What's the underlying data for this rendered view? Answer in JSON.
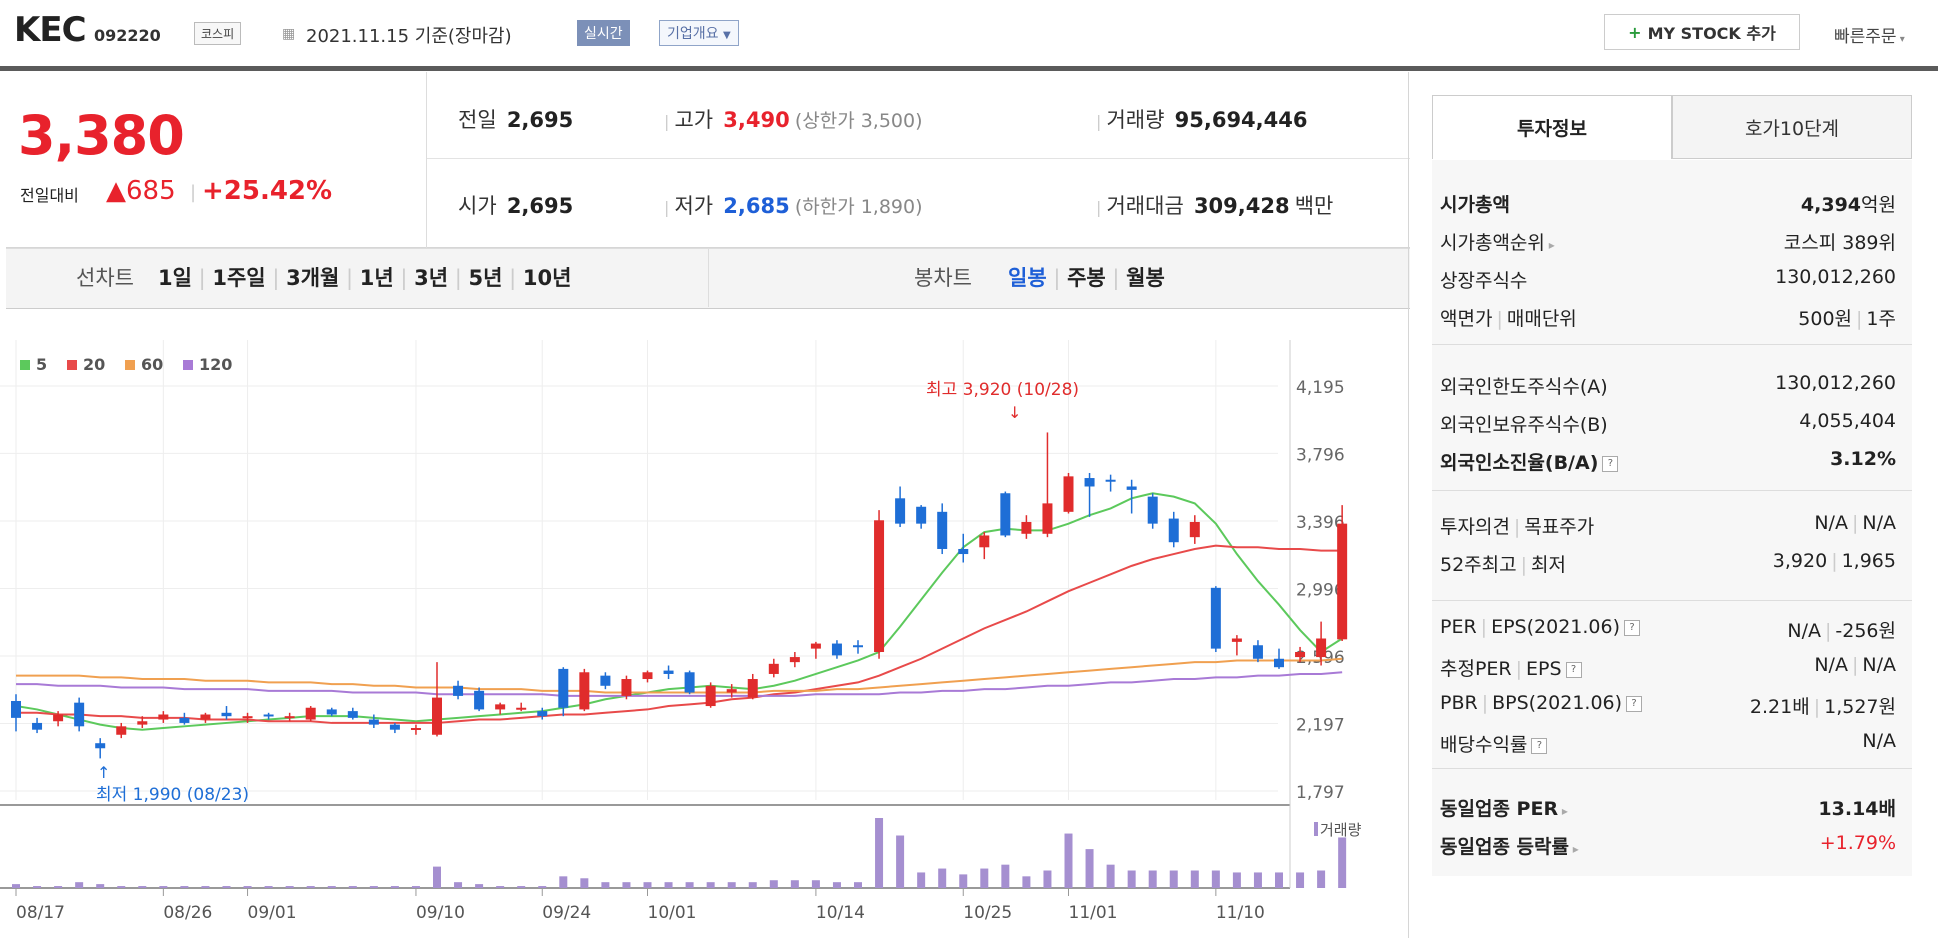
{
  "header": {
    "name": "KEC",
    "code": "092220",
    "market": "코스피",
    "date_basis": "2021.11.15 기준(장마감)",
    "realtime": "실시간",
    "company": "기업개요",
    "mystock": "MY STOCK 추가",
    "quick": "빠른주문"
  },
  "summary": {
    "price": "3,380",
    "diff_label": "전일대비",
    "diff_value": "▲685",
    "diff_pct": "+25.42%",
    "prev_label": "전일",
    "prev": "2,695",
    "open_label": "시가",
    "open": "2,695",
    "high_label": "고가",
    "high": "3,490",
    "upper_limit": "(상한가 3,500)",
    "low_label": "저가",
    "low": "2,685",
    "lower_limit": "(하한가 1,890)",
    "vol_label": "거래량",
    "vol": "95,694,446",
    "amt_label": "거래대금",
    "amt": "309,428",
    "amt_unit": "백만"
  },
  "tabs": {
    "line_label": "선차트",
    "line_items": [
      "1일",
      "1주일",
      "3개월",
      "1년",
      "3년",
      "5년",
      "10년"
    ],
    "candle_label": "봉차트",
    "candle_items": [
      "일봉",
      "주봉",
      "월봉"
    ]
  },
  "chart_data": {
    "type": "candlestick",
    "legend": [
      "5",
      "20",
      "60",
      "120"
    ],
    "colors": {
      "ma5": "#5cc95c",
      "ma20": "#e84a4a",
      "ma60": "#f0a050",
      "ma120": "#a87ad6",
      "up": "#e02c2c",
      "down": "#1e6ed6",
      "vol": "#a58fd0"
    },
    "y_ticks": [
      "4,195",
      "3,796",
      "3,396",
      "2,996",
      "2,596",
      "2,197",
      "1,797"
    ],
    "ylim": [
      1797,
      4195
    ],
    "x_ticks": [
      "08/17",
      "08/26",
      "09/01",
      "09/10",
      "09/24",
      "10/01",
      "10/14",
      "10/25",
      "11/01",
      "11/10"
    ],
    "x_tick_index": [
      0,
      7,
      11,
      19,
      25,
      30,
      38,
      45,
      50,
      57
    ],
    "high_annot": "최고 3,920 (10/28)",
    "low_annot": "최저 1,990 (08/23)",
    "volume_label": "거래량",
    "candles": [
      [
        2330,
        2370,
        2150,
        2230
      ],
      [
        2200,
        2230,
        2140,
        2160
      ],
      [
        2210,
        2270,
        2180,
        2250
      ],
      [
        2320,
        2350,
        2150,
        2180
      ],
      [
        2080,
        2110,
        1990,
        2050
      ],
      [
        2130,
        2200,
        2110,
        2180
      ],
      [
        2190,
        2240,
        2170,
        2210
      ],
      [
        2220,
        2270,
        2200,
        2250
      ],
      [
        2230,
        2260,
        2190,
        2200
      ],
      [
        2220,
        2260,
        2200,
        2250
      ],
      [
        2260,
        2300,
        2220,
        2240
      ],
      [
        2240,
        2260,
        2200,
        2240
      ],
      [
        2250,
        2260,
        2220,
        2240
      ],
      [
        2230,
        2260,
        2210,
        2240
      ],
      [
        2220,
        2300,
        2210,
        2290
      ],
      [
        2280,
        2290,
        2240,
        2250
      ],
      [
        2270,
        2290,
        2220,
        2230
      ],
      [
        2220,
        2250,
        2170,
        2190
      ],
      [
        2190,
        2200,
        2140,
        2160
      ],
      [
        2170,
        2190,
        2130,
        2170
      ],
      [
        2130,
        2560,
        2120,
        2350
      ],
      [
        2420,
        2450,
        2340,
        2360
      ],
      [
        2390,
        2410,
        2270,
        2280
      ],
      [
        2280,
        2320,
        2250,
        2310
      ],
      [
        2290,
        2320,
        2270,
        2290
      ],
      [
        2270,
        2290,
        2220,
        2240
      ],
      [
        2520,
        2530,
        2240,
        2290
      ],
      [
        2280,
        2520,
        2270,
        2500
      ],
      [
        2480,
        2500,
        2400,
        2420
      ],
      [
        2360,
        2480,
        2340,
        2460
      ],
      [
        2460,
        2510,
        2440,
        2500
      ],
      [
        2510,
        2540,
        2460,
        2490
      ],
      [
        2500,
        2510,
        2370,
        2380
      ],
      [
        2300,
        2440,
        2290,
        2420
      ],
      [
        2380,
        2430,
        2350,
        2400
      ],
      [
        2350,
        2490,
        2340,
        2460
      ],
      [
        2490,
        2580,
        2470,
        2550
      ],
      [
        2560,
        2620,
        2530,
        2590
      ],
      [
        2640,
        2680,
        2580,
        2670
      ],
      [
        2670,
        2690,
        2580,
        2600
      ],
      [
        2660,
        2690,
        2610,
        2650
      ],
      [
        2620,
        3460,
        2580,
        3400
      ],
      [
        3530,
        3600,
        3360,
        3380
      ],
      [
        3480,
        3490,
        3350,
        3380
      ],
      [
        3450,
        3500,
        3200,
        3230
      ],
      [
        3230,
        3320,
        3150,
        3200
      ],
      [
        3240,
        3330,
        3170,
        3310
      ],
      [
        3560,
        3570,
        3300,
        3310
      ],
      [
        3320,
        3430,
        3290,
        3390
      ],
      [
        3320,
        3920,
        3300,
        3500
      ],
      [
        3450,
        3680,
        3440,
        3660
      ],
      [
        3650,
        3680,
        3420,
        3600
      ],
      [
        3640,
        3670,
        3570,
        3630
      ],
      [
        3600,
        3640,
        3440,
        3580
      ],
      [
        3540,
        3560,
        3350,
        3380
      ],
      [
        3410,
        3450,
        3240,
        3270
      ],
      [
        3300,
        3430,
        3260,
        3390
      ],
      [
        3000,
        3010,
        2620,
        2640
      ],
      [
        2680,
        2720,
        2600,
        2700
      ],
      [
        2660,
        2690,
        2560,
        2580
      ],
      [
        2580,
        2640,
        2520,
        2530
      ],
      [
        2590,
        2650,
        2560,
        2620
      ],
      [
        2590,
        2800,
        2540,
        2700
      ],
      [
        2695,
        3490,
        2685,
        3380
      ]
    ],
    "ma5": [
      2300,
      2280,
      2250,
      2220,
      2190,
      2170,
      2160,
      2170,
      2180,
      2190,
      2200,
      2210,
      2220,
      2230,
      2240,
      2240,
      2240,
      2230,
      2220,
      2210,
      2220,
      2230,
      2240,
      2250,
      2260,
      2270,
      2290,
      2310,
      2340,
      2360,
      2380,
      2400,
      2410,
      2420,
      2410,
      2400,
      2420,
      2450,
      2490,
      2530,
      2570,
      2620,
      2770,
      2930,
      3090,
      3240,
      3330,
      3350,
      3340,
      3340,
      3380,
      3430,
      3470,
      3530,
      3560,
      3540,
      3500,
      3380,
      3200,
      3040,
      2900,
      2750,
      2620,
      2700
    ],
    "ma20": [
      2260,
      2260,
      2250,
      2250,
      2240,
      2240,
      2230,
      2230,
      2230,
      2220,
      2220,
      2220,
      2210,
      2210,
      2210,
      2200,
      2200,
      2200,
      2200,
      2200,
      2200,
      2210,
      2220,
      2220,
      2230,
      2240,
      2250,
      2250,
      2260,
      2270,
      2280,
      2300,
      2310,
      2320,
      2340,
      2350,
      2370,
      2380,
      2400,
      2420,
      2440,
      2480,
      2530,
      2580,
      2640,
      2700,
      2760,
      2810,
      2860,
      2920,
      2980,
      3030,
      3080,
      3130,
      3170,
      3200,
      3230,
      3250,
      3240,
      3240,
      3230,
      3230,
      3220,
      3220
    ],
    "ma60": [
      2480,
      2480,
      2480,
      2480,
      2470,
      2470,
      2460,
      2460,
      2460,
      2450,
      2450,
      2450,
      2440,
      2440,
      2440,
      2430,
      2430,
      2420,
      2420,
      2410,
      2410,
      2410,
      2400,
      2400,
      2400,
      2390,
      2390,
      2390,
      2380,
      2380,
      2380,
      2380,
      2380,
      2380,
      2380,
      2380,
      2390,
      2390,
      2390,
      2400,
      2400,
      2410,
      2420,
      2430,
      2440,
      2450,
      2460,
      2470,
      2480,
      2490,
      2500,
      2510,
      2520,
      2530,
      2540,
      2550,
      2560,
      2560,
      2570,
      2570,
      2570,
      2570,
      2570,
      2580
    ],
    "ma120": [
      2430,
      2430,
      2420,
      2420,
      2420,
      2410,
      2410,
      2410,
      2400,
      2400,
      2400,
      2400,
      2390,
      2390,
      2390,
      2390,
      2380,
      2380,
      2380,
      2380,
      2370,
      2370,
      2370,
      2370,
      2370,
      2370,
      2360,
      2360,
      2360,
      2360,
      2360,
      2360,
      2360,
      2360,
      2360,
      2360,
      2360,
      2360,
      2370,
      2370,
      2370,
      2370,
      2380,
      2380,
      2390,
      2390,
      2400,
      2400,
      2410,
      2420,
      2420,
      2430,
      2440,
      2440,
      2450,
      2460,
      2460,
      2470,
      2470,
      2480,
      2480,
      2490,
      2490,
      2500
    ],
    "volume": [
      2,
      1,
      1,
      3,
      2,
      1,
      1,
      1,
      1,
      1,
      1,
      1,
      1,
      1,
      1,
      1,
      1,
      1,
      1,
      1,
      11,
      3,
      2,
      1,
      1,
      1,
      6,
      5,
      3,
      3,
      3,
      3,
      3,
      3,
      3,
      3,
      4,
      4,
      4,
      3,
      3,
      36,
      27,
      8,
      10,
      7,
      10,
      12,
      6,
      9,
      28,
      20,
      12,
      9,
      9,
      9,
      9,
      9,
      8,
      8,
      8,
      8,
      9,
      26
    ]
  },
  "panel": {
    "tab_active": "투자정보",
    "tab_other": "호가10단계",
    "rows1": [
      {
        "k": "시가총액",
        "v": "4,394",
        "unit": "억원",
        "bold": true
      },
      {
        "k": "시가총액순위",
        "v": "코스피 389위",
        "arrow": true
      },
      {
        "k": "상장주식수",
        "v": "130,012,260"
      },
      {
        "k": "액면가",
        "k2": "매매단위",
        "v": "500원",
        "v2": "1주"
      }
    ],
    "rows2": [
      {
        "k": "외국인한도주식수(A)",
        "v": "130,012,260"
      },
      {
        "k": "외국인보유주식수(B)",
        "v": "4,055,404"
      },
      {
        "k": "외국인소진율(B/A)",
        "v": "3.12%",
        "bold": true
      }
    ],
    "rows3": [
      {
        "k": "투자의견",
        "k2": "목표주가",
        "v": "N/A",
        "v2": "N/A"
      },
      {
        "k": "52주최고",
        "k2": "최저",
        "v": "3,920",
        "v2": "1,965"
      }
    ],
    "rows4": [
      {
        "k": "PER",
        "k2": "EPS(2021.06)",
        "v": "N/A",
        "v2": "-256원"
      },
      {
        "k": "추정PER",
        "k2": "EPS",
        "v": "N/A",
        "v2": "N/A"
      },
      {
        "k": "PBR",
        "k2": "BPS(2021.06)",
        "v": "2.21배",
        "v2": "1,527원"
      },
      {
        "k": "배당수익률",
        "v": "N/A"
      }
    ],
    "rows5": [
      {
        "k": "동일업종 PER",
        "v": "13.14배"
      },
      {
        "k": "동일업종 등락률",
        "v": "+1.79%"
      }
    ]
  }
}
